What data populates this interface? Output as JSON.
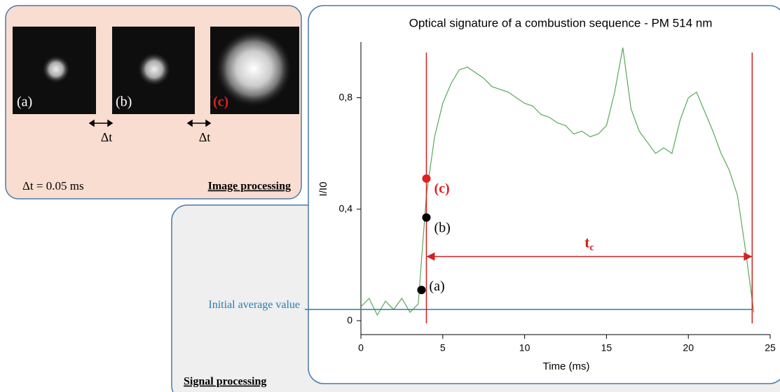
{
  "image_panel": {
    "labels": [
      "(a)",
      "(b)",
      "(c)"
    ],
    "delta": "Δt",
    "note": "Δt = 0.05  ms",
    "caption": "Image processing"
  },
  "signal_panel": {
    "caption": "Signal processing"
  },
  "chart_data": {
    "type": "line",
    "title": "Optical signature of a combustion sequence - PM 514 nm",
    "x_label": "Time (ms)",
    "y_label": "I/I0",
    "xlim": [
      0,
      25
    ],
    "ylim": [
      -0.05,
      1.0
    ],
    "xticks": [
      0,
      5,
      10,
      15,
      20,
      25
    ],
    "yticks": [
      0,
      {
        "value": 0.4,
        "label": "0,4"
      },
      {
        "value": 0.8,
        "label": "0,8"
      }
    ],
    "x": [
      0,
      0.5,
      1,
      1.5,
      2,
      2.5,
      3,
      3.5,
      4,
      4.5,
      5,
      5.5,
      6,
      6.5,
      7,
      7.5,
      8,
      8.5,
      9,
      9.5,
      10,
      10.5,
      11,
      11.5,
      12,
      12.5,
      13,
      13.5,
      14,
      14.5,
      15,
      15.5,
      16,
      16.5,
      17,
      17.5,
      18,
      18.5,
      19,
      19.5,
      20,
      20.5,
      21,
      21.5,
      22,
      22.5,
      23,
      23.5,
      24
    ],
    "series": [
      {
        "name": "PM 514 nm",
        "color": "#5aa85a",
        "values": [
          0.05,
          0.08,
          0.02,
          0.07,
          0.04,
          0.08,
          0.03,
          0.06,
          0.45,
          0.66,
          0.78,
          0.85,
          0.9,
          0.91,
          0.89,
          0.87,
          0.84,
          0.83,
          0.82,
          0.8,
          0.78,
          0.77,
          0.74,
          0.73,
          0.71,
          0.7,
          0.67,
          0.68,
          0.66,
          0.67,
          0.7,
          0.82,
          0.98,
          0.76,
          0.68,
          0.64,
          0.6,
          0.62,
          0.6,
          0.72,
          0.8,
          0.82,
          0.75,
          0.68,
          0.6,
          0.54,
          0.45,
          0.25,
          0.03
        ]
      }
    ],
    "vlines": {
      "color": "#d42020",
      "x": [
        4,
        23.9
      ]
    },
    "points": [
      {
        "label": "(a)",
        "x": 3.7,
        "y": 0.11,
        "color": "#000000"
      },
      {
        "label": "(b)",
        "x": 4.0,
        "y": 0.37,
        "color": "#000000"
      },
      {
        "label": "(c)",
        "x": 4.0,
        "y": 0.51,
        "color": "#e02020"
      }
    ],
    "baseline": {
      "label": "Initial average value",
      "value": 0.04,
      "color": "#2b7bb0"
    },
    "duration": {
      "text": "t",
      "subscript": "c",
      "from": 4,
      "to": 23.9,
      "y": 0.23,
      "color": "#d42020"
    }
  }
}
